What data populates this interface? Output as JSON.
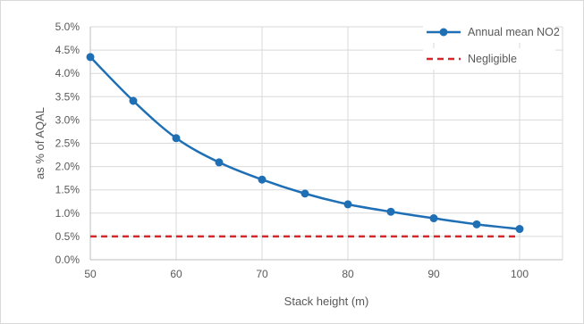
{
  "chart_data": {
    "type": "line",
    "title": "",
    "xlabel": "Stack height (m)",
    "ylabel": "as % of AQAL",
    "x": [
      50,
      55,
      60,
      65,
      70,
      75,
      80,
      85,
      90,
      95,
      100
    ],
    "xlim": [
      50,
      105
    ],
    "ylim": [
      0,
      5
    ],
    "x_ticks": [
      {
        "value": 50,
        "label": "50"
      },
      {
        "value": 60,
        "label": "60"
      },
      {
        "value": 70,
        "label": "70"
      },
      {
        "value": 80,
        "label": "80"
      },
      {
        "value": 90,
        "label": "90"
      },
      {
        "value": 100,
        "label": "100"
      }
    ],
    "y_ticks": [
      {
        "value": 0,
        "label": "0.0%"
      },
      {
        "value": 0.5,
        "label": "0.5%"
      },
      {
        "value": 1,
        "label": "1.0%"
      },
      {
        "value": 1.5,
        "label": "1.5%"
      },
      {
        "value": 2,
        "label": "2.0%"
      },
      {
        "value": 2.5,
        "label": "2.5%"
      },
      {
        "value": 3,
        "label": "3.0%"
      },
      {
        "value": 3.5,
        "label": "3.5%"
      },
      {
        "value": 4,
        "label": "4.0%"
      },
      {
        "value": 4.5,
        "label": "4.5%"
      },
      {
        "value": 5,
        "label": "5.0%"
      }
    ],
    "grid": true,
    "legend_position": "top-right",
    "series": [
      {
        "name": "Annual mean NO2",
        "color": "#1f6fb5",
        "style": "solid-with-markers",
        "values": [
          4.35,
          3.41,
          2.61,
          2.09,
          1.72,
          1.42,
          1.19,
          1.03,
          0.89,
          0.76,
          0.66
        ]
      },
      {
        "name": "Negligible",
        "color": "#d9262b",
        "style": "dashed",
        "values": [
          0.5,
          0.5,
          0.5,
          0.5,
          0.5,
          0.5,
          0.5,
          0.5,
          0.5,
          0.5,
          0.5
        ]
      }
    ]
  }
}
